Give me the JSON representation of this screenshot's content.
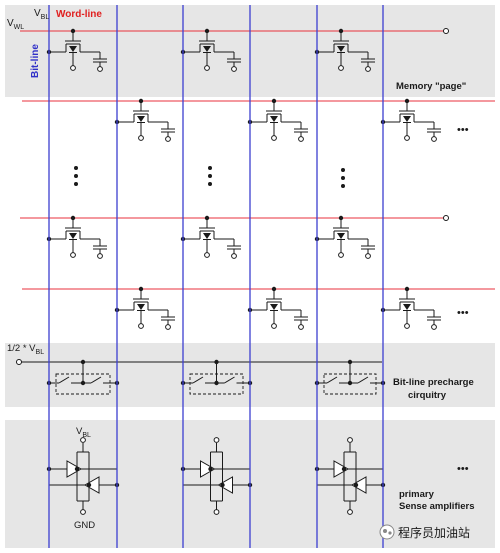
{
  "labels": {
    "vbl_top": "V",
    "vbl_top_sub": "BL",
    "wordline": "Word-line",
    "vwl": "V",
    "vwl_sub": "WL",
    "bitline": "Bit-line",
    "memory_page": "Memory \"page\"",
    "half_vbl_prefix": "1/2 * V",
    "half_vbl_sub": "BL",
    "precharge_line1": "Bit-line precharge",
    "precharge_line2": "cirquitry",
    "sa_vbl": "V",
    "sa_vbl_sub": "BL",
    "gnd": "GND",
    "sense_line1": "primary",
    "sense_line2": "Sense amplifiers",
    "ellipsis": "•••",
    "watermark": "程序员加油站"
  },
  "colors": {
    "wordline": "#e8323c",
    "bitline": "#3c3fd0",
    "shade": "#e6e6e6",
    "ink": "#1a1a1a",
    "wordline_label": "#e02020",
    "bitline_label": "#3030c8"
  }
}
